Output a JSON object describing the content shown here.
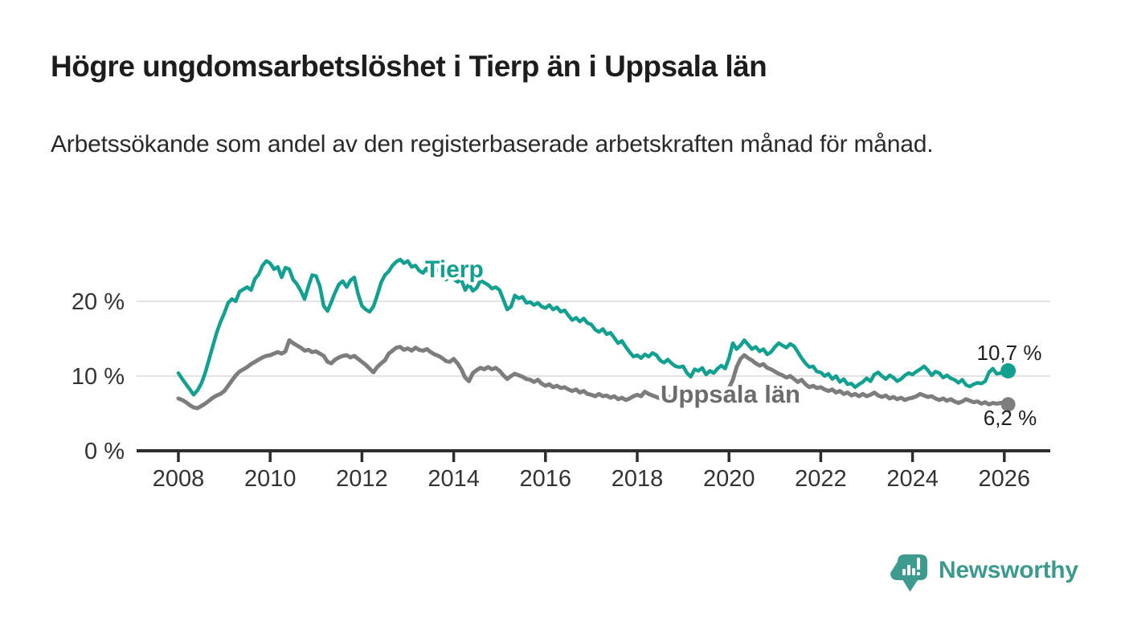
{
  "header": {
    "title": "Högre ungdomsarbetslöshet i Tierp än i Uppsala län",
    "subtitle": "Arbetssökande som andel av den registerbaserade arbetskraften månad för månad."
  },
  "colors": {
    "tierp": "#12a191",
    "uppsala": "#7d7d7d",
    "uppsala_label": "#6c6c6c",
    "axis": "#2e2e2e",
    "grid": "#d8d8d8",
    "text": "#1d1d1d",
    "brand_teal": "#3d9a8f"
  },
  "chart_data": {
    "type": "line",
    "title": "Högre ungdomsarbetslöshet i Tierp än i Uppsala län",
    "xlabel": "",
    "ylabel": "Arbetssökande som andel av den registerbaserade arbetskraften",
    "x_start": "2008-01",
    "x_end": "2026-02",
    "x_frequency": "monthly",
    "ylim": [
      0,
      28
    ],
    "grid": "horizontal",
    "unit": "%",
    "x_ticks": [
      {
        "year": 2008,
        "label": "2008"
      },
      {
        "year": 2010,
        "label": "2010"
      },
      {
        "year": 2012,
        "label": "2012"
      },
      {
        "year": 2014,
        "label": "2014"
      },
      {
        "year": 2016,
        "label": "2016"
      },
      {
        "year": 2018,
        "label": "2018"
      },
      {
        "year": 2020,
        "label": "2020"
      },
      {
        "year": 2022,
        "label": "2022"
      },
      {
        "year": 2024,
        "label": "2024"
      },
      {
        "year": 2026,
        "label": "2026"
      }
    ],
    "y_ticks": [
      {
        "value": 20,
        "label": "20 %"
      },
      {
        "value": 10,
        "label": "10 %"
      },
      {
        "value": 0,
        "label": "0 %"
      }
    ],
    "series": [
      {
        "name": "Tierp",
        "color": "#12a191",
        "end_label": "10,7 %",
        "last_value": 10.7,
        "values": [
          10.4,
          9.6,
          8.9,
          8.2,
          7.5,
          8.1,
          9.0,
          10.4,
          12.2,
          14.0,
          15.8,
          17.2,
          18.4,
          19.8,
          20.3,
          20.0,
          21.3,
          21.6,
          21.9,
          21.5,
          23.0,
          23.6,
          24.8,
          25.4,
          25.1,
          24.3,
          24.6,
          23.2,
          24.5,
          24.3,
          22.9,
          22.3,
          21.4,
          20.3,
          22.0,
          23.5,
          23.4,
          22.0,
          19.4,
          18.7,
          19.9,
          21.2,
          22.3,
          22.7,
          21.9,
          22.8,
          23.2,
          21.0,
          19.4,
          18.9,
          18.6,
          19.3,
          20.8,
          22.5,
          23.5,
          24.0,
          24.8,
          25.3,
          25.6,
          25.1,
          25.4,
          24.6,
          24.8,
          24.1,
          23.8,
          24.5,
          23.3,
          23.9,
          24.2,
          23.5,
          22.9,
          23.4,
          23.0,
          22.6,
          22.9,
          21.5,
          22.3,
          21.4,
          21.8,
          22.8,
          22.5,
          22.2,
          21.7,
          21.9,
          21.5,
          20.2,
          18.9,
          19.3,
          20.8,
          20.4,
          20.6,
          19.8,
          19.9,
          19.5,
          19.8,
          19.3,
          19.1,
          19.5,
          18.9,
          19.2,
          18.6,
          18.8,
          18.1,
          17.5,
          17.8,
          17.3,
          17.7,
          17.1,
          16.9,
          16.2,
          15.9,
          16.3,
          15.6,
          15.8,
          15.1,
          14.4,
          14.7,
          13.9,
          13.2,
          12.6,
          12.8,
          12.4,
          12.9,
          12.6,
          13.1,
          12.8,
          12.1,
          11.8,
          12.2,
          11.7,
          11.3,
          11.2,
          11.3,
          10.4,
          9.9,
          10.9,
          10.7,
          11.1,
          10.2,
          10.7,
          10.4,
          11.0,
          11.4,
          11.0,
          12.4,
          14.4,
          13.6,
          14.1,
          14.8,
          14.2,
          13.6,
          13.9,
          13.3,
          13.6,
          12.9,
          13.2,
          13.9,
          14.4,
          14.1,
          13.8,
          14.3,
          14.0,
          13.2,
          12.4,
          11.7,
          11.2,
          11.3,
          10.6,
          10.5,
          10.0,
          10.3,
          9.6,
          10.0,
          9.2,
          9.6,
          8.9,
          9.0,
          8.5,
          8.9,
          9.2,
          9.7,
          9.3,
          10.2,
          10.5,
          10.0,
          9.6,
          10.1,
          9.8,
          9.3,
          9.6,
          10.1,
          10.4,
          10.2,
          10.6,
          10.9,
          11.3,
          10.8,
          10.1,
          10.6,
          10.4,
          9.8,
          10.1,
          9.7,
          9.5,
          9.1,
          9.5,
          8.8,
          8.6,
          8.9,
          9.1,
          9.0,
          9.3,
          10.5,
          11.0,
          10.3,
          10.4,
          10.3,
          10.7
        ]
      },
      {
        "name": "Uppsala län",
        "color": "#7d7d7d",
        "end_label": "6,2 %",
        "last_value": 6.2,
        "values": [
          7.0,
          6.8,
          6.5,
          6.1,
          5.8,
          5.7,
          6.0,
          6.3,
          6.7,
          7.1,
          7.4,
          7.6,
          8.0,
          8.7,
          9.4,
          10.1,
          10.6,
          10.9,
          11.2,
          11.6,
          11.9,
          12.2,
          12.5,
          12.7,
          12.8,
          13.0,
          13.2,
          13.0,
          13.3,
          14.8,
          14.4,
          14.1,
          13.8,
          13.4,
          13.5,
          13.2,
          13.3,
          13.0,
          12.7,
          11.9,
          11.7,
          12.2,
          12.5,
          12.7,
          12.8,
          12.5,
          12.7,
          12.3,
          11.9,
          11.5,
          11.0,
          10.5,
          11.2,
          11.7,
          12.1,
          13.0,
          13.4,
          13.8,
          13.9,
          13.5,
          13.7,
          13.4,
          13.8,
          13.5,
          13.4,
          13.6,
          13.2,
          12.9,
          12.7,
          12.4,
          12.0,
          11.9,
          12.3,
          11.7,
          10.9,
          9.8,
          9.3,
          10.4,
          10.8,
          11.1,
          10.9,
          11.2,
          10.9,
          11.1,
          10.7,
          10.1,
          9.6,
          10.0,
          10.3,
          10.1,
          9.9,
          9.6,
          9.5,
          9.2,
          9.5,
          9.0,
          8.7,
          8.9,
          8.5,
          8.7,
          8.4,
          8.5,
          8.2,
          8.0,
          8.2,
          7.8,
          8.0,
          7.6,
          7.5,
          7.3,
          7.6,
          7.3,
          7.4,
          7.1,
          7.3,
          6.9,
          7.1,
          6.8,
          7.0,
          7.3,
          7.5,
          7.3,
          7.9,
          7.6,
          7.4,
          7.2,
          7.0,
          7.2,
          7.1,
          7.3,
          7.1,
          7.0,
          7.2,
          7.1,
          6.9,
          7.1,
          7.3,
          7.2,
          7.0,
          7.1,
          7.2,
          7.4,
          7.6,
          7.9,
          8.4,
          9.5,
          11.2,
          12.3,
          12.8,
          12.4,
          12.1,
          11.7,
          11.4,
          11.6,
          11.1,
          10.9,
          10.6,
          10.3,
          10.1,
          9.8,
          10.0,
          9.6,
          9.2,
          9.5,
          8.9,
          8.5,
          8.7,
          8.4,
          8.5,
          8.2,
          8.0,
          8.2,
          7.8,
          8.0,
          7.6,
          7.8,
          7.4,
          7.6,
          7.3,
          7.6,
          7.3,
          7.5,
          7.8,
          7.4,
          7.2,
          7.4,
          7.0,
          7.2,
          6.9,
          7.1,
          6.8,
          7.0,
          7.1,
          7.3,
          7.6,
          7.4,
          7.2,
          7.3,
          7.0,
          6.8,
          7.0,
          6.7,
          6.9,
          6.6,
          6.4,
          6.6,
          6.9,
          6.7,
          6.5,
          6.6,
          6.3,
          6.5,
          6.2,
          6.4,
          6.3,
          6.4,
          6.4,
          6.2
        ]
      }
    ]
  },
  "footer": {
    "brand": "Newsworthy"
  }
}
